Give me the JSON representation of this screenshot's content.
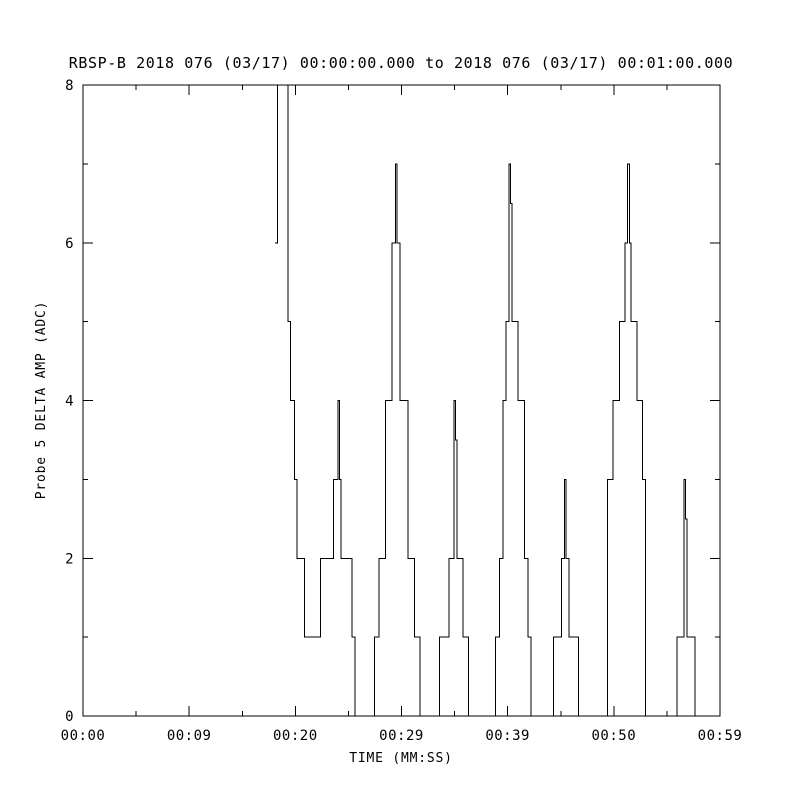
{
  "chart_data": {
    "type": "line",
    "step_mode": "after",
    "title": "RBSP-B 2018 076 (03/17) 00:00:00.000 to 2018 076 (03/17) 00:01:00.000",
    "xlabel": "TIME (MM:SS)",
    "ylabel": "Probe 5 DELTA AMP (ADC)",
    "xlim": [
      0,
      59
    ],
    "ylim": [
      0,
      8
    ],
    "grid": false,
    "legend": "none",
    "background_color": "#ffffff",
    "line_color": "#000000",
    "axis_color": "#000000",
    "x_tick_positions": [
      0,
      9.8333,
      19.6667,
      29.5,
      39.3333,
      49.1667,
      59
    ],
    "x_tick_labels": [
      "00:00",
      "00:09",
      "00:20",
      "00:29",
      "00:39",
      "00:50",
      "00:59"
    ],
    "x_minor_tick_positions": [
      4.9167,
      14.75,
      24.5833,
      34.4167,
      44.25,
      54.0833
    ],
    "y_tick_values": [
      0,
      2,
      4,
      6,
      8
    ],
    "y_tick_labels": [
      "0",
      "2",
      "4",
      "6",
      "8"
    ],
    "y_minor_tick_values": [
      1,
      3,
      5,
      7
    ],
    "series": [
      {
        "name": "Probe 5 DELTA AMP",
        "units": "ADC",
        "points": [
          [
            17.8,
            6
          ],
          [
            18.0,
            8
          ],
          [
            19.0,
            5
          ],
          [
            19.2,
            4
          ],
          [
            19.6,
            3
          ],
          [
            19.8,
            2
          ],
          [
            20.5,
            1
          ],
          [
            22.0,
            2
          ],
          [
            23.2,
            3
          ],
          [
            23.6,
            4
          ],
          [
            23.75,
            3
          ],
          [
            23.9,
            2
          ],
          [
            24.9,
            1
          ],
          [
            25.2,
            0
          ],
          [
            27.0,
            1
          ],
          [
            27.4,
            2
          ],
          [
            28.0,
            4
          ],
          [
            28.6,
            6
          ],
          [
            28.95,
            7
          ],
          [
            29.1,
            6
          ],
          [
            29.35,
            4
          ],
          [
            30.1,
            2
          ],
          [
            30.7,
            1
          ],
          [
            31.2,
            0
          ],
          [
            33.0,
            1
          ],
          [
            33.9,
            2
          ],
          [
            34.35,
            4
          ],
          [
            34.5,
            3.5
          ],
          [
            34.65,
            2
          ],
          [
            35.2,
            1
          ],
          [
            35.7,
            0
          ],
          [
            38.2,
            1
          ],
          [
            38.6,
            2
          ],
          [
            38.9,
            4
          ],
          [
            39.2,
            5
          ],
          [
            39.45,
            7
          ],
          [
            39.6,
            6.5
          ],
          [
            39.75,
            5
          ],
          [
            40.3,
            4
          ],
          [
            40.9,
            2
          ],
          [
            41.2,
            1
          ],
          [
            41.5,
            0
          ],
          [
            43.6,
            1
          ],
          [
            44.3,
            2
          ],
          [
            44.6,
            3
          ],
          [
            44.75,
            2
          ],
          [
            45.0,
            1
          ],
          [
            45.9,
            0
          ],
          [
            48.6,
            3
          ],
          [
            49.1,
            4
          ],
          [
            49.7,
            5
          ],
          [
            50.2,
            6
          ],
          [
            50.45,
            7
          ],
          [
            50.6,
            6
          ],
          [
            50.75,
            5
          ],
          [
            51.3,
            4
          ],
          [
            51.8,
            3
          ],
          [
            52.1,
            0
          ],
          [
            55.0,
            1
          ],
          [
            55.65,
            3
          ],
          [
            55.8,
            2.5
          ],
          [
            55.95,
            1
          ],
          [
            56.7,
            0
          ],
          [
            59.0,
            0
          ]
        ]
      }
    ]
  }
}
